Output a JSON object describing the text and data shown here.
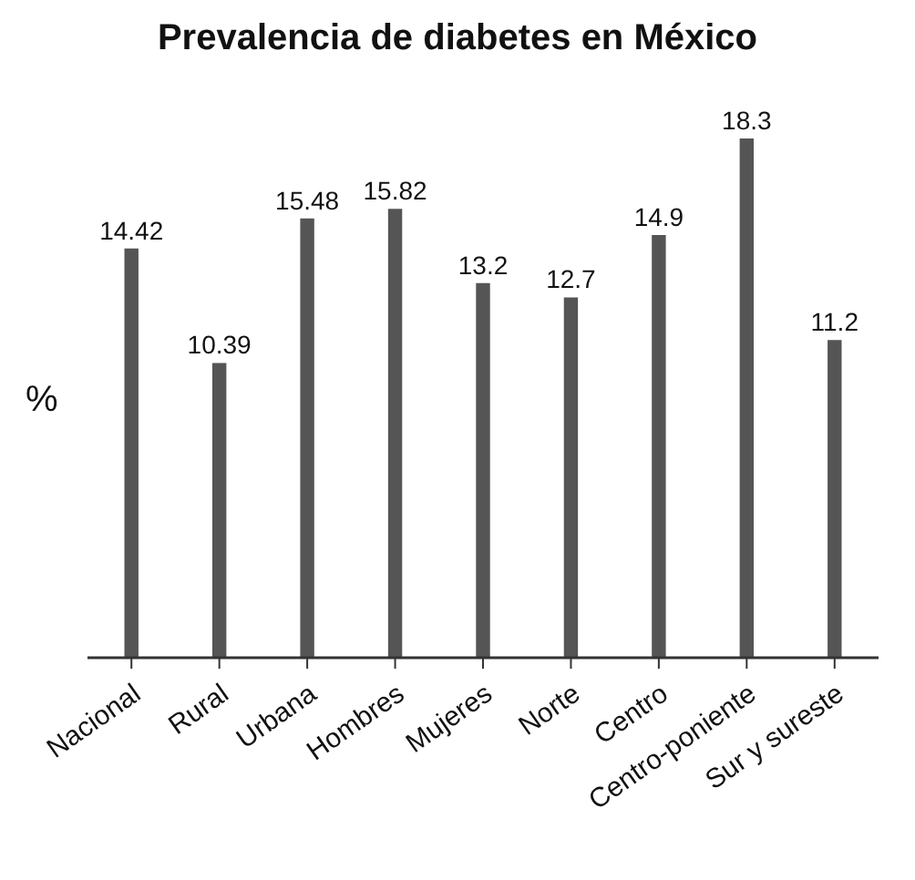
{
  "chart_data": {
    "type": "bar",
    "title": "Prevalencia de diabetes en México",
    "ylabel": "%",
    "categories": [
      "Nacional",
      "Rural",
      "Urbana",
      "Hombres",
      "Mujeres",
      "Norte",
      "Centro",
      "Centro-poniente",
      "Sur y sureste"
    ],
    "values": [
      14.42,
      10.39,
      15.48,
      15.82,
      13.2,
      12.7,
      14.9,
      18.3,
      11.2
    ],
    "color": "#555555",
    "data_labels": true,
    "grid": false,
    "legend": false
  }
}
